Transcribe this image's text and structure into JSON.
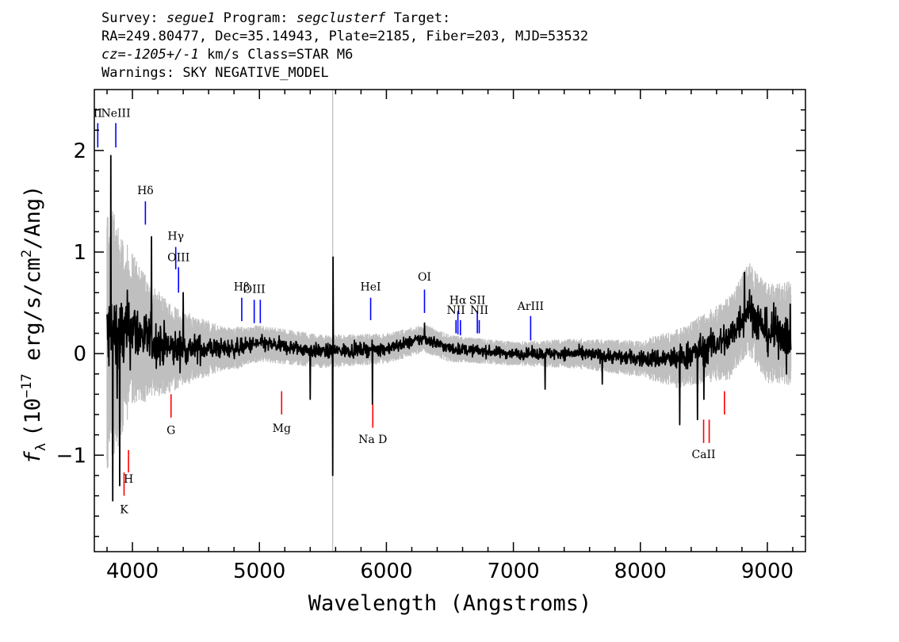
{
  "header": {
    "survey_label": "Survey:",
    "survey": "segue1",
    "program_label": "Program:",
    "program": "segclusterf",
    "target_label": "Target:",
    "line2": "RA=249.80477, Dec=35.14943, Plate=2185, Fiber=203, MJD=53532",
    "cz_label": "cz=",
    "cz_value": "-1205+/-1",
    "cz_units": "km/s",
    "class": "Class=STAR M6",
    "warnings": "Warnings: SKY NEGATIVE_MODEL"
  },
  "chart_data": {
    "type": "line",
    "xlabel": "Wavelength (Angstroms)",
    "ylabel_parts": {
      "f": "f",
      "sub": "λ",
      "pre": "(10",
      "exp1": "−17",
      "mid": " erg/s/cm",
      "exp2": "2",
      "post": "/Ang)"
    },
    "xlim": [
      3700,
      9300
    ],
    "ylim": [
      -1.95,
      2.6
    ],
    "x_ticks": [
      4000,
      5000,
      6000,
      7000,
      8000,
      9000
    ],
    "x_tick_labels": [
      "4000",
      "5000",
      "6000",
      "7000",
      "8000",
      "9000"
    ],
    "y_ticks": [
      -1,
      0,
      1,
      2
    ],
    "y_tick_labels": [
      "−1",
      "0",
      "1",
      "2"
    ],
    "grid": false,
    "vertical_marker_x": 5577,
    "series": [
      {
        "role": "flux",
        "color": "#000000"
      },
      {
        "role": "error",
        "color": "#bfbfbf"
      }
    ],
    "flux_knots": [
      [
        3800,
        0.1
      ],
      [
        3850,
        0.2
      ],
      [
        3900,
        0.15
      ],
      [
        3950,
        0.2
      ],
      [
        4000,
        0.25
      ],
      [
        4100,
        0.15
      ],
      [
        4200,
        0.1
      ],
      [
        4300,
        0.05
      ],
      [
        4400,
        0.05
      ],
      [
        4600,
        0.05
      ],
      [
        4800,
        0.05
      ],
      [
        5000,
        0.1
      ],
      [
        5500,
        0.02
      ],
      [
        6000,
        0.05
      ],
      [
        6300,
        0.15
      ],
      [
        6500,
        0.05
      ],
      [
        7000,
        0.0
      ],
      [
        7500,
        0.0
      ],
      [
        8000,
        -0.05
      ],
      [
        8300,
        -0.05
      ],
      [
        8500,
        0.05
      ],
      [
        8700,
        0.15
      ],
      [
        8850,
        0.45
      ],
      [
        9000,
        0.2
      ],
      [
        9180,
        0.2
      ]
    ],
    "noise_knots": [
      [
        3800,
        0.9
      ],
      [
        3900,
        0.7
      ],
      [
        4000,
        0.5
      ],
      [
        4200,
        0.35
      ],
      [
        4400,
        0.25
      ],
      [
        4700,
        0.15
      ],
      [
        5000,
        0.12
      ],
      [
        6000,
        0.1
      ],
      [
        7000,
        0.08
      ],
      [
        7500,
        0.1
      ],
      [
        8000,
        0.12
      ],
      [
        8300,
        0.2
      ],
      [
        8600,
        0.25
      ],
      [
        8800,
        0.3
      ],
      [
        9200,
        0.35
      ]
    ],
    "spikes": [
      {
        "x": 3830,
        "y": 1.95
      },
      {
        "x": 3845,
        "y": -1.45
      },
      {
        "x": 3900,
        "y": -1.3
      },
      {
        "x": 4150,
        "y": 1.15
      },
      {
        "x": 4400,
        "y": 0.6
      },
      {
        "x": 5400,
        "y": -0.45
      },
      {
        "x": 5577,
        "y": -1.2
      },
      {
        "x": 5580,
        "y": 0.95
      },
      {
        "x": 5890,
        "y": -0.5
      },
      {
        "x": 6300,
        "y": 0.3
      },
      {
        "x": 7250,
        "y": -0.35
      },
      {
        "x": 7700,
        "y": -0.3
      },
      {
        "x": 8310,
        "y": -0.7
      },
      {
        "x": 8450,
        "y": -0.65
      },
      {
        "x": 8500,
        "y": -0.45
      },
      {
        "x": 8820,
        "y": 0.8
      },
      {
        "x": 9050,
        "y": 0.5
      },
      {
        "x": 9150,
        "y": -0.2
      }
    ],
    "emission_lines": [
      {
        "label": "II",
        "x": 3727,
        "y_label": 2.33,
        "y_top": 2.27,
        "y_bot": 2.03,
        "color": "#0000ff"
      },
      {
        "label": "NeIII",
        "x": 3869,
        "y_label": 2.33,
        "y_top": 2.27,
        "y_bot": 2.03,
        "color": "#0000ff"
      },
      {
        "label": "Hδ",
        "x": 4102,
        "y_label": 1.57,
        "y_top": 1.5,
        "y_bot": 1.27,
        "color": "#0000ff"
      },
      {
        "label": "Hγ",
        "x": 4341,
        "y_label": 1.12,
        "y_top": 1.05,
        "y_bot": 0.83,
        "color": "#0000ff"
      },
      {
        "label": "OIII",
        "x": 4363,
        "y_label": 0.91,
        "y_top": 0.85,
        "y_bot": 0.6,
        "color": "#0000ff"
      },
      {
        "label": "Hβ",
        "x": 4861,
        "y_label": 0.62,
        "y_top": 0.55,
        "y_bot": 0.32,
        "color": "#0000ff"
      },
      {
        "label": "OIII",
        "x": 4959,
        "y_label": 0.6,
        "y_top": 0.53,
        "y_bot": 0.3,
        "color": "#0000ff"
      },
      {
        "label": "",
        "x": 5007,
        "y_label": 0.6,
        "y_top": 0.53,
        "y_bot": 0.3,
        "color": "#0000ff"
      },
      {
        "label": "HeI",
        "x": 5876,
        "y_label": 0.62,
        "y_top": 0.55,
        "y_bot": 0.33,
        "color": "#0000ff"
      },
      {
        "label": "OI",
        "x": 6300,
        "y_label": 0.72,
        "y_top": 0.63,
        "y_bot": 0.4,
        "color": "#0000ff"
      },
      {
        "label": "NII",
        "x": 6548,
        "y_label": 0.39,
        "y_top": 0.33,
        "y_bot": 0.2,
        "color": "#0000ff"
      },
      {
        "label": "Hα",
        "x": 6563,
        "y_label": 0.49,
        "y_top": 0.42,
        "y_bot": 0.19,
        "color": "#0000ff"
      },
      {
        "label": "",
        "x": 6583,
        "y_label": 0.39,
        "y_top": 0.33,
        "y_bot": 0.18,
        "color": "#0000ff"
      },
      {
        "label": "SII",
        "x": 6716,
        "y_label": 0.49,
        "y_top": 0.42,
        "y_bot": 0.2,
        "color": "#0000ff"
      },
      {
        "label": "NII",
        "x": 6731,
        "y_label": 0.39,
        "y_top": 0.33,
        "y_bot": 0.2,
        "color": "#0000ff"
      },
      {
        "label": "ArIII",
        "x": 7136,
        "y_label": 0.43,
        "y_top": 0.37,
        "y_bot": 0.13,
        "color": "#0000ff"
      }
    ],
    "absorption_lines": [
      {
        "label": "K",
        "x": 3934,
        "y_label": -1.57,
        "y_top": -1.17,
        "y_bot": -1.4,
        "color": "#ff0000"
      },
      {
        "label": "H",
        "x": 3969,
        "y_label": -1.27,
        "y_top": -0.95,
        "y_bot": -1.17,
        "color": "#ff0000"
      },
      {
        "label": "G",
        "x": 4304,
        "y_label": -0.79,
        "y_top": -0.4,
        "y_bot": -0.63,
        "color": "#ff0000"
      },
      {
        "label": "Mg",
        "x": 5175,
        "y_label": -0.77,
        "y_top": -0.37,
        "y_bot": -0.6,
        "color": "#ff0000"
      },
      {
        "label": "Na D",
        "x": 5893,
        "y_label": -0.88,
        "y_top": -0.5,
        "y_bot": -0.73,
        "color": "#ff0000"
      },
      {
        "label": "CaII",
        "x": 8498,
        "y_label": -1.03,
        "y_top": -0.65,
        "y_bot": -0.88,
        "color": "#ff0000"
      },
      {
        "label": "",
        "x": 8542,
        "y_label": -1.03,
        "y_top": -0.65,
        "y_bot": -0.88,
        "color": "#ff0000"
      },
      {
        "label": "",
        "x": 8662,
        "y_label": -1.03,
        "y_top": -0.37,
        "y_bot": -0.6,
        "color": "#ff0000"
      }
    ]
  }
}
